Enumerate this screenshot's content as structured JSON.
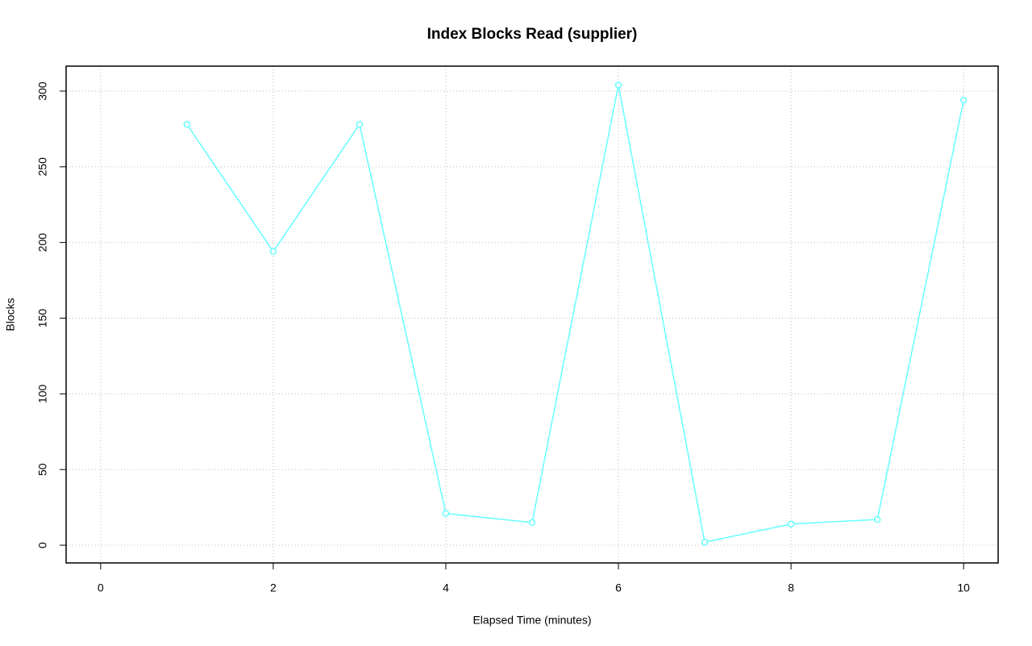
{
  "chart_data": {
    "type": "line",
    "title": "Index Blocks Read (supplier)",
    "x_label": "Elapsed Time (minutes)",
    "y_label": "Blocks",
    "x": [
      1,
      2,
      3,
      4,
      5,
      6,
      7,
      8,
      9,
      10
    ],
    "series": [
      {
        "name": "supplier",
        "color": "#66ffff",
        "values": [
          278,
          194,
          278,
          21,
          15,
          304,
          2,
          14,
          17,
          294
        ]
      }
    ],
    "xlim": [
      -0.4,
      10.4
    ],
    "xticks": [
      0,
      2,
      4,
      6,
      8,
      10
    ],
    "ylim": [
      -11.7,
      316.5
    ],
    "yticks": [
      0,
      50,
      100,
      150,
      200,
      250,
      300
    ],
    "grid": true
  }
}
